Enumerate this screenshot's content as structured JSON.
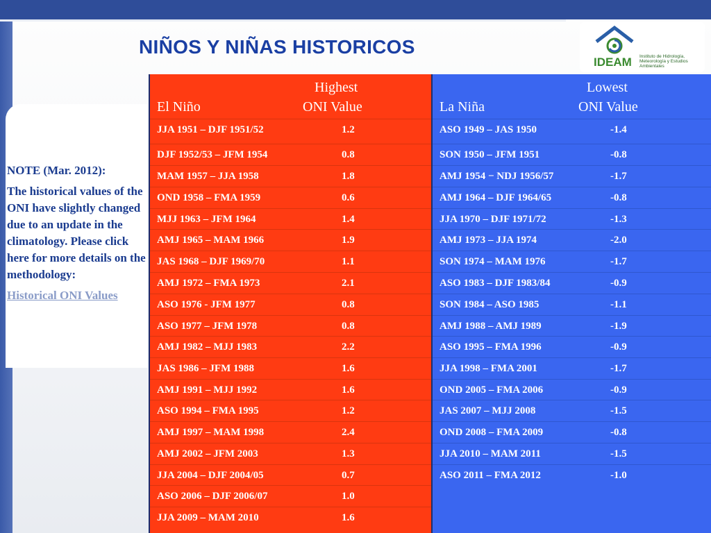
{
  "title": "NIÑOS Y NIÑAS HISTORICOS",
  "logo": {
    "name": "IDEAM",
    "subtitle": "Instituto de Hidrología, Meteorología y Estudios Ambientales"
  },
  "note": {
    "heading": "NOTE (Mar. 2012):",
    "body": "The historical values of the ONI have slightly changed due to an update in the climatology.  Please click here for more details on the methodology:",
    "link": "Historical ONI Values"
  },
  "el_nino": {
    "header_top": "Highest",
    "header_left": "El Niño",
    "header_right": "ONI Value",
    "rows": [
      {
        "period": "JJA 1951 – DJF 1951/52",
        "value": "1.2"
      },
      {
        "period": "DJF 1952/53 – JFM 1954",
        "value": "0.8"
      },
      {
        "period": "MAM 1957 – JJA 1958",
        "value": "1.8"
      },
      {
        "period": "OND 1958  – FMA 1959",
        "value": "0.6"
      },
      {
        "period": "MJJ 1963 – JFM 1964",
        "value": "1.4"
      },
      {
        "period": "AMJ 1965 – MAM 1966",
        "value": "1.9"
      },
      {
        "period": "JAS 1968 – DJF 1969/70",
        "value": "1.1"
      },
      {
        "period": "AMJ 1972 – FMA 1973",
        "value": "2.1"
      },
      {
        "period": "ASO 1976 - JFM 1977",
        "value": "0.8"
      },
      {
        "period": "ASO 1977 – JFM 1978",
        "value": "0.8"
      },
      {
        "period": "AMJ 1982 – MJJ 1983",
        "value": "2.2"
      },
      {
        "period": "JAS 1986 – JFM 1988",
        "value": "1.6"
      },
      {
        "period": "AMJ 1991 – MJJ 1992",
        "value": "1.6"
      },
      {
        "period": "ASO 1994 – FMA 1995",
        "value": "1.2"
      },
      {
        "period": "AMJ 1997 – MAM 1998",
        "value": "2.4"
      },
      {
        "period": "AMJ 2002 – JFM 2003",
        "value": "1.3"
      },
      {
        "period": "JJA 2004 – DJF 2004/05",
        "value": "0.7"
      },
      {
        "period": "ASO 2006 – DJF 2006/07",
        "value": "1.0"
      },
      {
        "period": "JJA 2009 – MAM 2010",
        "value": "1.6"
      }
    ]
  },
  "la_nina": {
    "header_top": "Lowest",
    "header_left": "La Niña",
    "header_right": "ONI Value",
    "rows": [
      {
        "period": "ASO 1949 – JAS 1950",
        "value": "-1.4"
      },
      {
        "period": "SON 1950 – JFM 1951",
        "value": "-0.8"
      },
      {
        "period": "AMJ 1954 − NDJ 1956/57",
        "value": "-1.7"
      },
      {
        "period": "AMJ 1964 – DJF 1964/65",
        "value": "-0.8"
      },
      {
        "period": "JJA 1970 – DJF 1971/72",
        "value": "-1.3"
      },
      {
        "period": "AMJ 1973 – JJA 1974",
        "value": "-2.0"
      },
      {
        "period": "SON 1974 – MAM 1976",
        "value": "-1.7"
      },
      {
        "period": "ASO 1983 – DJF 1983/84",
        "value": "-0.9"
      },
      {
        "period": "SON 1984 – ASO 1985",
        "value": "-1.1"
      },
      {
        "period": "AMJ 1988 – AMJ 1989",
        "value": "-1.9"
      },
      {
        "period": "ASO 1995 – FMA 1996",
        "value": "-0.9"
      },
      {
        "period": "JJA 1998 – FMA 2001",
        "value": "-1.7"
      },
      {
        "period": "OND 2005 – FMA 2006",
        "value": "-0.9"
      },
      {
        "period": "JAS 2007  – MJJ 2008",
        "value": "-1.5"
      },
      {
        "period": "OND 2008 – FMA 2009",
        "value": "-0.8"
      },
      {
        "period": "JJA 2010 – MAM 2011",
        "value": "-1.5"
      },
      {
        "period": "ASO 2011 – FMA 2012",
        "value": "-1.0"
      }
    ]
  },
  "colors": {
    "el_nino_bg": "#ff3b12",
    "la_nina_bg": "#3a66f0",
    "title": "#1a3fa3",
    "note_text": "#1a3b8f"
  }
}
